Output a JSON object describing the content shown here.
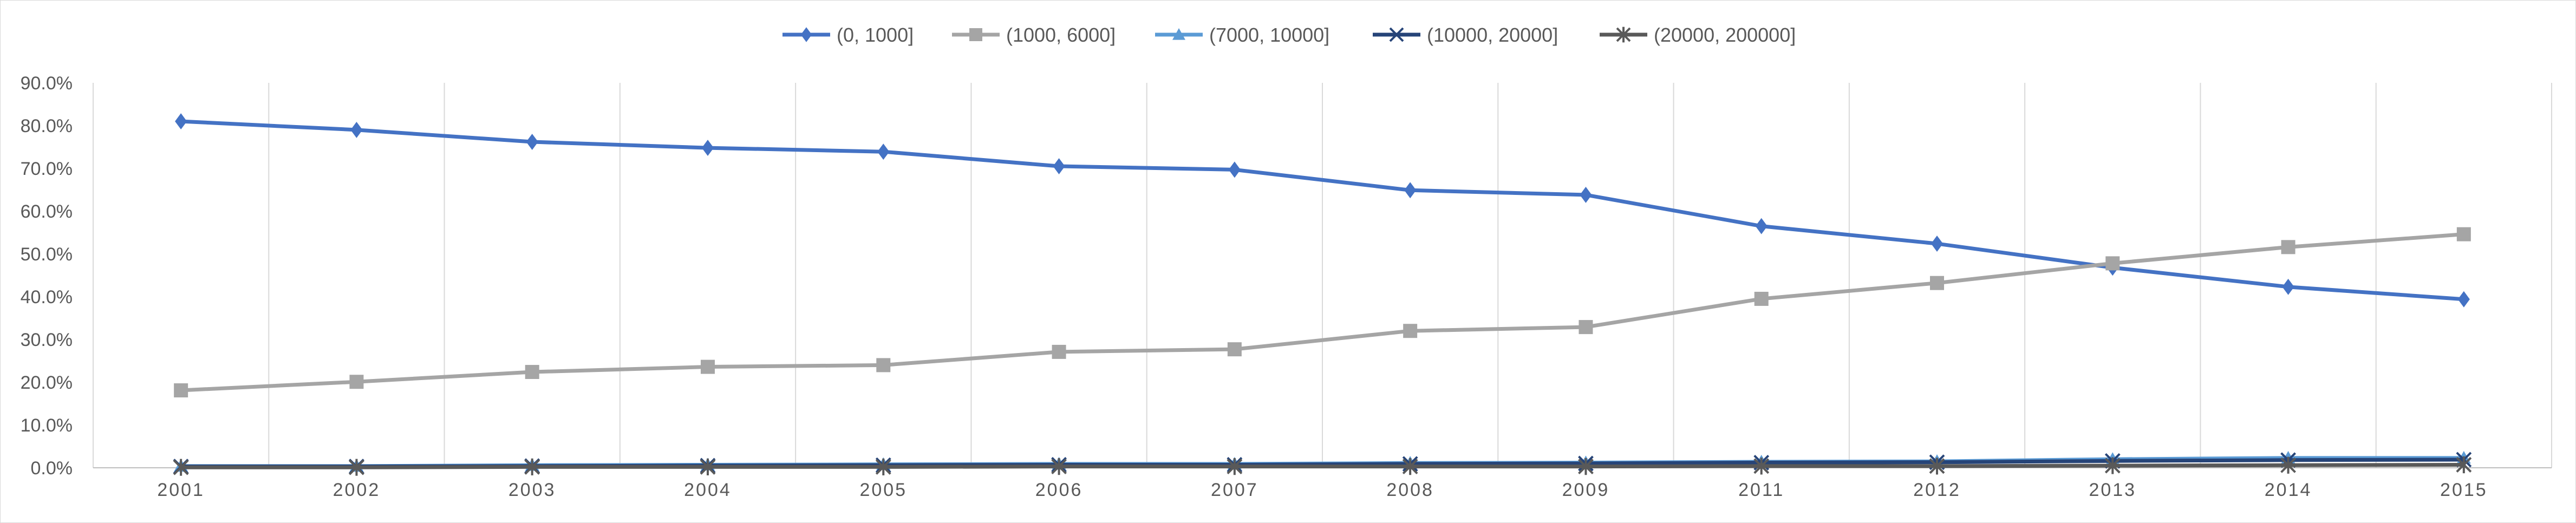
{
  "chart_data": {
    "type": "line",
    "title": "",
    "xlabel": "",
    "ylabel": "",
    "categories": [
      "2001",
      "2002",
      "2003",
      "2004",
      "2005",
      "2006",
      "2007",
      "2008",
      "2009",
      "2011",
      "2012",
      "2013",
      "2014",
      "2015"
    ],
    "ylim": [
      0,
      0.9
    ],
    "yticks": [
      0,
      0.1,
      0.2,
      0.3,
      0.4,
      0.5,
      0.6,
      0.7,
      0.8,
      0.9
    ],
    "ytick_labels": [
      "0.0%",
      "10.0%",
      "20.0%",
      "30.0%",
      "40.0%",
      "50.0%",
      "60.0%",
      "70.0%",
      "80.0%",
      "90.0%"
    ],
    "grid": "vertical",
    "legend": "top",
    "series": [
      {
        "name": "(0, 1000]",
        "color": "#4472C4",
        "marker": "diamond",
        "values": [
          0.81,
          0.79,
          0.762,
          0.748,
          0.739,
          0.705,
          0.697,
          0.649,
          0.638,
          0.565,
          0.524,
          0.468,
          0.423,
          0.394
        ]
      },
      {
        "name": "(1000, 6000]",
        "color": "#A5A5A5",
        "marker": "square",
        "values": [
          0.181,
          0.201,
          0.224,
          0.236,
          0.24,
          0.271,
          0.277,
          0.32,
          0.329,
          0.395,
          0.432,
          0.478,
          0.516,
          0.546
        ]
      },
      {
        "name": "(7000, 10000]",
        "color": "#5B9BD5",
        "marker": "triangle",
        "values": [
          0.004,
          0.004,
          0.006,
          0.007,
          0.008,
          0.009,
          0.009,
          0.011,
          0.012,
          0.014,
          0.015,
          0.02,
          0.023,
          0.023
        ]
      },
      {
        "name": "(10000, 20000]",
        "color": "#264478",
        "marker": "x",
        "values": [
          0.003,
          0.003,
          0.004,
          0.005,
          0.006,
          0.007,
          0.007,
          0.009,
          0.01,
          0.012,
          0.013,
          0.016,
          0.018,
          0.019
        ]
      },
      {
        "name": "(20000, 200000]",
        "color": "#595959",
        "marker": "star",
        "values": [
          0.001,
          0.001,
          0.002,
          0.002,
          0.002,
          0.003,
          0.003,
          0.003,
          0.003,
          0.004,
          0.004,
          0.005,
          0.006,
          0.007
        ]
      }
    ]
  }
}
